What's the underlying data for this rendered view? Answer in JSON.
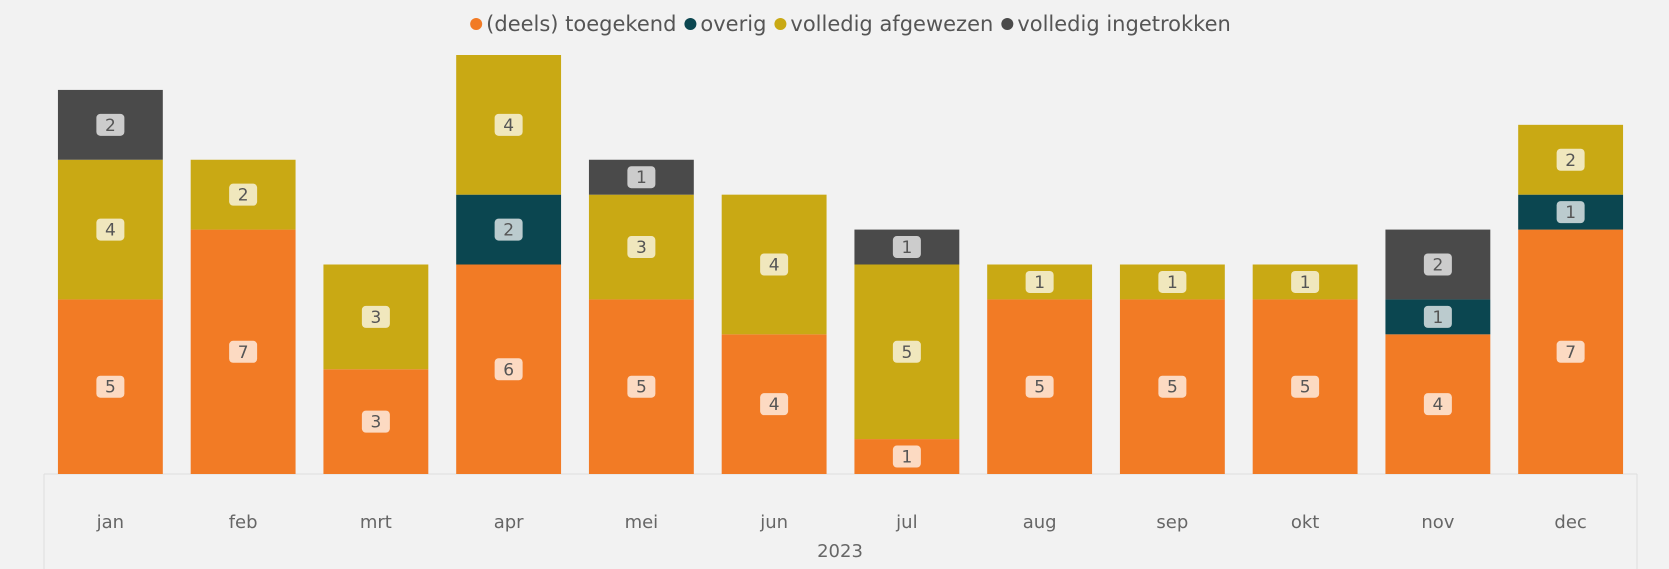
{
  "chart_data": {
    "type": "stacked_bar",
    "x_label": "2023",
    "categories": [
      "jan",
      "feb",
      "mrt",
      "apr",
      "mei",
      "jun",
      "jul",
      "aug",
      "sep",
      "okt",
      "nov",
      "dec"
    ],
    "series": [
      {
        "name": "(deels) toegekend",
        "color": "#f27b25",
        "values": [
          5,
          7,
          3,
          6,
          5,
          4,
          1,
          5,
          5,
          5,
          4,
          7
        ]
      },
      {
        "name": "overig",
        "color": "#0b4650",
        "values": [
          null,
          null,
          null,
          2,
          null,
          null,
          null,
          null,
          null,
          null,
          1,
          1
        ]
      },
      {
        "name": "volledig afgewezen",
        "color": "#c9a914",
        "values": [
          4,
          2,
          3,
          4,
          3,
          4,
          5,
          1,
          1,
          1,
          null,
          2
        ]
      },
      {
        "name": "volledig ingetrokken",
        "color": "#4a4a4a",
        "values": [
          2,
          null,
          null,
          null,
          1,
          null,
          1,
          null,
          null,
          null,
          2,
          null
        ]
      }
    ],
    "legend": "top"
  }
}
